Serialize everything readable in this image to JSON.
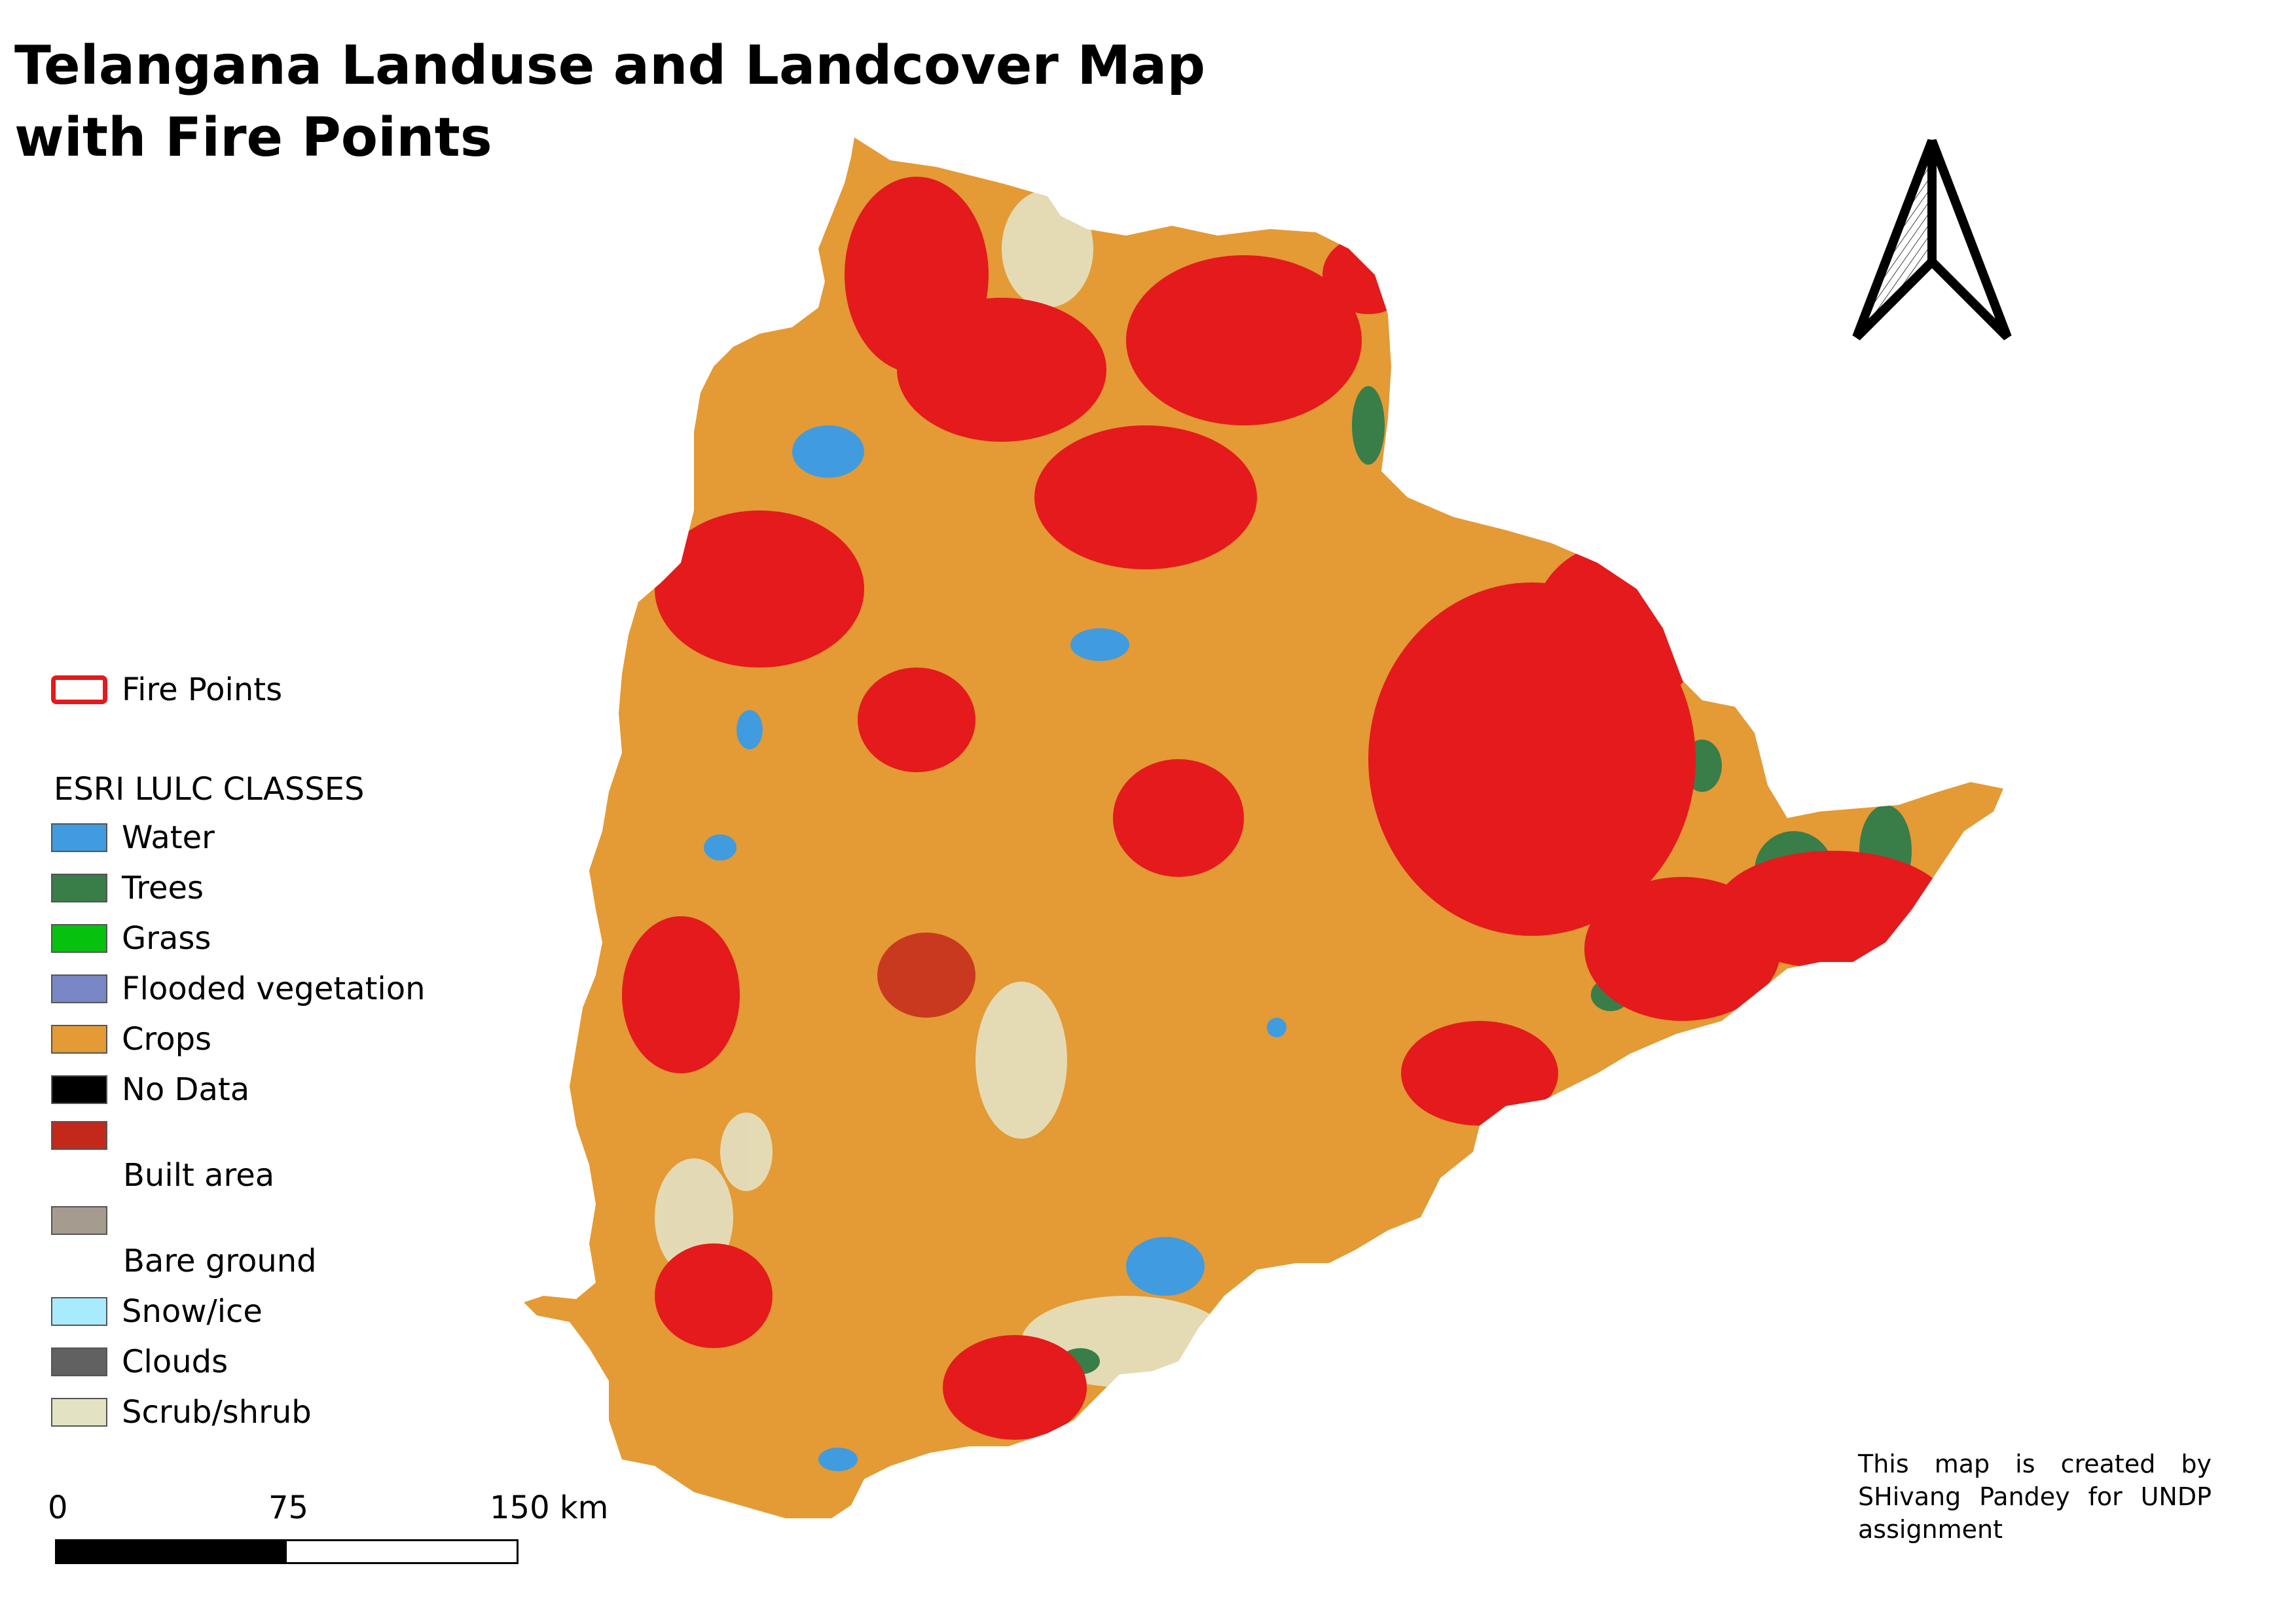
{
  "map": {
    "title_line1": "Telangana Landuse and Landcover Map",
    "title_line2": "with Fire Points",
    "region": "Telangana",
    "colors": {
      "crops": "#e49a35",
      "fire": "#e41a1c",
      "water": "#419bdf",
      "trees": "#397d49",
      "scrub": "#e3e2c3",
      "built": "#c4281b"
    }
  },
  "legend": {
    "fire_points": "Fire Points",
    "classes_heading": "ESRI LULC CLASSES",
    "classes": [
      {
        "label": "Water",
        "color": "#419bdf"
      },
      {
        "label": "Trees",
        "color": "#397d49"
      },
      {
        "label": "Grass",
        "color": "#07c10f"
      },
      {
        "label": "Flooded vegetation",
        "color": "#7a87c6"
      },
      {
        "label": "Crops",
        "color": "#e49a35"
      },
      {
        "label": "No Data",
        "color": "#000000"
      },
      {
        "label": "Built area",
        "color": "#c4281b"
      },
      {
        "label": "Bare ground",
        "color": "#a59b8f"
      },
      {
        "label": "Snow/ice",
        "color": "#a8ebff"
      },
      {
        "label": "Clouds",
        "color": "#616161"
      },
      {
        "label": "Scrub/shrub",
        "color": "#e3e2c3"
      }
    ]
  },
  "scale_bar": {
    "tick_0": "0",
    "tick_mid": "75",
    "tick_end": "150 km"
  },
  "north_arrow": {
    "icon": "north-arrow-icon"
  },
  "credit": "This map is created by SHivang Pandey for UNDP assignment"
}
